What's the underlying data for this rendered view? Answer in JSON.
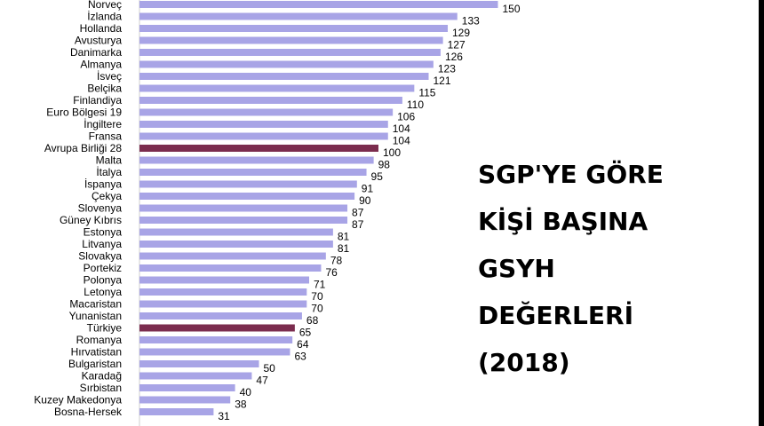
{
  "chart_data": {
    "type": "bar",
    "orientation": "horizontal",
    "title_lines": [
      "SGP'YE GÖRE",
      "KİŞİ BAŞINA",
      "GSYH",
      "DEĞERLERİ",
      "(2018)"
    ],
    "categories": [
      "Norveç",
      "İzlanda",
      "Hollanda",
      "Avusturya",
      "Danimarka",
      "Almanya",
      "İsveç",
      "Belçika",
      "Finlandiya",
      "Euro Bölgesi 19",
      "İngiltere",
      "Fransa",
      "Avrupa Birliği 28",
      "Malta",
      "İtalya",
      "İspanya",
      "Çekya",
      "Slovenya",
      "Güney Kıbrıs",
      "Estonya",
      "Litvanya",
      "Slovakya",
      "Portekiz",
      "Polonya",
      "Letonya",
      "Macaristan",
      "Yunanistan",
      "Türkiye",
      "Romanya",
      "Hırvatistan",
      "Bulgaristan",
      "Karadağ",
      "Sırbistan",
      "Kuzey Makedonya",
      "Bosna-Hersek"
    ],
    "values": [
      150,
      133,
      129,
      127,
      126,
      123,
      121,
      115,
      110,
      106,
      104,
      104,
      100,
      98,
      95,
      91,
      90,
      87,
      87,
      81,
      81,
      78,
      76,
      71,
      70,
      70,
      68,
      65,
      64,
      63,
      50,
      47,
      40,
      38,
      31
    ],
    "value_labels": [
      "150",
      "133",
      "129",
      "127",
      "126",
      "123",
      "121",
      "115",
      "110",
      "106",
      "104",
      "104",
      "100",
      "98",
      "95",
      "91",
      "90",
      "87",
      "87",
      "81",
      "81",
      "78",
      "76",
      "71",
      "70",
      "70",
      "68",
      "65",
      "64",
      "63",
      "50",
      "47",
      "40",
      "38",
      "31"
    ],
    "highlighted": [
      "Avrupa Birliği 28",
      "Türkiye"
    ],
    "colors": {
      "bar": "#a8a4e6",
      "highlight": "#7b2c4e"
    },
    "grid": false,
    "legend": "none"
  }
}
